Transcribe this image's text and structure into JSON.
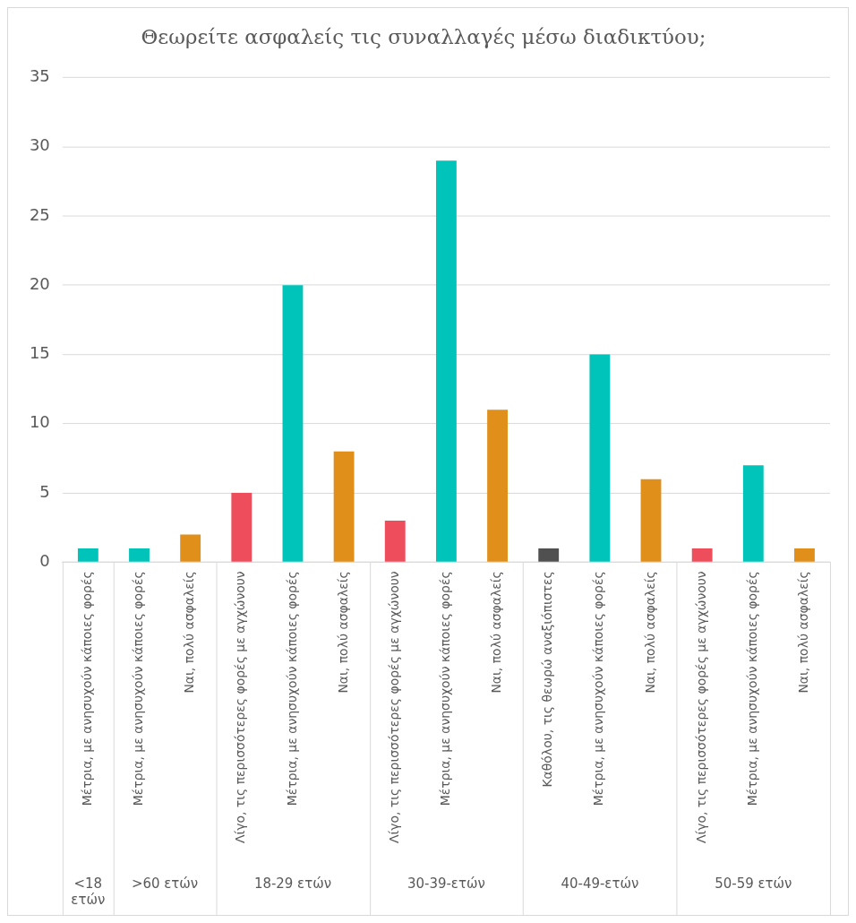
{
  "chart_data": {
    "type": "bar",
    "title": "Θεωρείτε ασφαλείς τις συναλλαγές μέσω διαδικτύου;",
    "categories": [
      "Μέτρια, με ανησυχούν κάποιες φορές",
      "Μέτρια, με ανησυχούν κάποιες φορές",
      "Ναι, πολύ ασφαλείς",
      "Λίγο, τις περισσότερες φορές με αγχώνουν",
      "Μέτρια, με ανησυχούν κάποιες φορές",
      "Ναι, πολύ ασφαλείς",
      "Λίγο, τις περισσότερες φορές με αγχώνουν",
      "Μέτρια, με ανησυχούν κάποιες φορές",
      "Ναι, πολύ ασφαλείς",
      "Καθόλου, τις θεωρώ αναξιόπιστες",
      "Μέτρια, με ανησυχούν κάποιες φορές",
      "Ναι, πολύ ασφαλείς",
      "Λίγο, τις περισσότερες φορές με αγχώνουν",
      "Μέτρια, με ανησυχούν κάποιες φορές",
      "Ναι, πολύ ασφαλείς"
    ],
    "values": [
      1,
      1,
      2,
      5,
      20,
      8,
      3,
      29,
      11,
      1,
      15,
      6,
      1,
      7,
      1
    ],
    "colors": [
      "#00c4b9",
      "#00c4b9",
      "#e08f1a",
      "#ee4d5b",
      "#00c4b9",
      "#e08f1a",
      "#ee4d5b",
      "#00c4b9",
      "#e08f1a",
      "#505050",
      "#00c4b9",
      "#e08f1a",
      "#ee4d5b",
      "#00c4b9",
      "#e08f1a"
    ],
    "annotations": [
      "<18 ετών",
      ">60 ετών",
      "18-29 ετών",
      "30-39-ετών",
      "40-49-ετών",
      "50-59 ετών"
    ],
    "ylim": [
      0,
      35
    ],
    "yticks": [
      0,
      5,
      10,
      15,
      20,
      25,
      30,
      35
    ],
    "grid": "y",
    "legend": false
  }
}
